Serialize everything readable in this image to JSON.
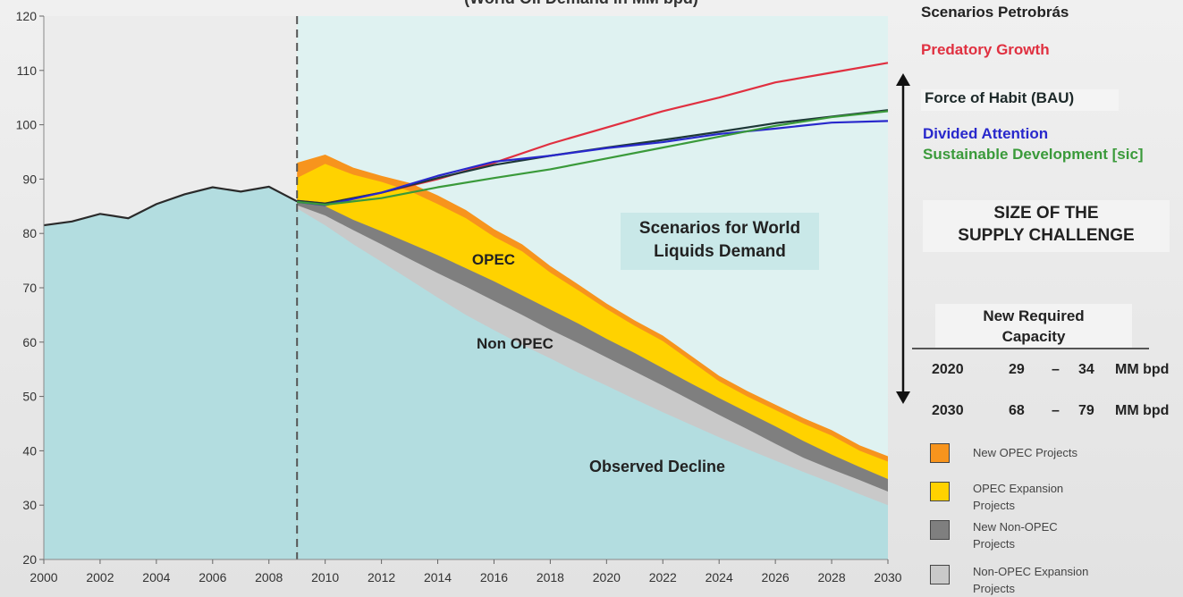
{
  "chart_data": {
    "type": "area",
    "subtitle": "(World Oil Demand in MM bpd)",
    "x": [
      2000,
      2001,
      2002,
      2003,
      2004,
      2005,
      2006,
      2007,
      2008,
      2009,
      2010,
      2011,
      2012,
      2013,
      2014,
      2015,
      2016,
      2017,
      2018,
      2019,
      2020,
      2021,
      2022,
      2023,
      2024,
      2025,
      2026,
      2027,
      2028,
      2029,
      2030
    ],
    "xticks": [
      2000,
      2002,
      2004,
      2006,
      2008,
      2010,
      2012,
      2014,
      2016,
      2018,
      2020,
      2022,
      2024,
      2026,
      2028,
      2030
    ],
    "yticks": [
      20,
      30,
      40,
      50,
      60,
      70,
      80,
      90,
      100,
      110,
      120
    ],
    "ylim": [
      20,
      120
    ],
    "xlim": [
      2000,
      2030
    ],
    "history": {
      "x": [
        2000,
        2001,
        2002,
        2003,
        2004,
        2005,
        2006,
        2007,
        2008,
        2009
      ],
      "values": [
        81.5,
        82.2,
        83.6,
        82.8,
        85.4,
        87.2,
        88.5,
        87.7,
        88.6,
        85.9
      ]
    },
    "stacked_areas": {
      "x": [
        2009,
        2010,
        2011,
        2012,
        2013,
        2014,
        2015,
        2016,
        2017,
        2018,
        2019,
        2020,
        2021,
        2022,
        2023,
        2024,
        2025,
        2026,
        2027,
        2028,
        2029,
        2030
      ],
      "observed_decline": [
        84.6,
        81.5,
        78,
        74.8,
        71.5,
        68.2,
        65,
        62.2,
        59.5,
        57,
        54.4,
        52,
        49.5,
        47.1,
        44.8,
        42.5,
        40.3,
        38.2,
        36.1,
        34.1,
        32,
        30
      ],
      "non_opec_expansion": [
        85.2,
        83.3,
        80.6,
        78,
        75.3,
        72.7,
        70.2,
        67.6,
        65,
        62.3,
        59.8,
        57.2,
        54.6,
        52,
        49.3,
        46.6,
        44,
        41.3,
        38.7,
        36.6,
        34.6,
        32.5
      ],
      "new_non_opec": [
        86,
        85,
        82.5,
        80.4,
        78.2,
        76,
        73.6,
        71.2,
        68.6,
        66,
        63.4,
        60.6,
        58,
        55.2,
        52.4,
        49.7,
        47.1,
        44.5,
        41.8,
        39.3,
        37,
        34.8
      ],
      "opec_expansion": [
        90.2,
        92.8,
        90.8,
        89.5,
        87.8,
        85.4,
        82.8,
        79.4,
        76.7,
        72.8,
        69.5,
        66.1,
        63,
        60.2,
        56.5,
        52.8,
        50,
        47.5,
        45,
        42.8,
        40,
        38
      ],
      "new_opec": [
        93,
        94.5,
        92.1,
        90.6,
        89.3,
        87,
        84.3,
        80.8,
        78,
        74,
        70.6,
        67.1,
        64,
        61.2,
        57.5,
        53.8,
        51,
        48.5,
        46,
        43.8,
        41,
        39
      ]
    },
    "series": [
      {
        "name": "Predatory Growth",
        "color": "#e03040",
        "x": [
          2009,
          2010,
          2012,
          2014,
          2016,
          2018,
          2020,
          2022,
          2024,
          2026,
          2028,
          2030
        ],
        "values": [
          86,
          85.5,
          87.5,
          90,
          93,
          96.5,
          99.5,
          102.5,
          105,
          107.8,
          109.6,
          111.4
        ]
      },
      {
        "name": "Force of Habit (BAU)",
        "color": "#1e3838",
        "x": [
          2009,
          2010,
          2012,
          2014,
          2016,
          2018,
          2020,
          2022,
          2024,
          2026,
          2028,
          2030
        ],
        "values": [
          86,
          85.5,
          87.5,
          90.2,
          92.6,
          94.3,
          95.8,
          97.2,
          98.7,
          100.3,
          101.5,
          102.7
        ]
      },
      {
        "name": "Divided Attention",
        "color": "#2828cc",
        "x": [
          2009,
          2010,
          2012,
          2014,
          2016,
          2018,
          2020,
          2022,
          2024,
          2026,
          2028,
          2030
        ],
        "values": [
          85.8,
          85.2,
          87.5,
          90.6,
          93.2,
          94.3,
          95.7,
          96.8,
          98.3,
          99.3,
          100.4,
          100.7
        ]
      },
      {
        "name": "Sustainable Development [sic]",
        "color": "#3a9a3a",
        "x": [
          2009,
          2010,
          2012,
          2014,
          2016,
          2018,
          2020,
          2022,
          2024,
          2026,
          2028,
          2030
        ],
        "values": [
          85.8,
          85.3,
          86.5,
          88.5,
          90.2,
          91.8,
          93.8,
          95.8,
          97.8,
          99.8,
          101.4,
          102.5
        ]
      }
    ],
    "forecast_start": 2009,
    "grid": false
  },
  "annotations": {
    "scenarios_box": [
      "Scenarios for World",
      "Liquids Demand"
    ],
    "opec": "OPEC",
    "non_opec": "Non OPEC",
    "observed_decline": "Observed Decline"
  },
  "legend": {
    "title": "Scenarios Petrobrás",
    "scenarios": [
      {
        "label": "Predatory Growth",
        "color": "#e03040"
      },
      {
        "label": "Force of Habit (BAU)",
        "color": "#1e2a2a"
      },
      {
        "label": "Divided Attention",
        "color": "#2828cc"
      },
      {
        "label": "Sustainable Development [sic]",
        "color": "#3a9a3a"
      }
    ],
    "supply_challenge": [
      "SIZE OF THE",
      "SUPPLY CHALLENGE"
    ],
    "new_required_capacity": [
      "New Required",
      "Capacity"
    ],
    "capacity_rows": [
      {
        "year": "2020",
        "low": "29",
        "dash": "–",
        "high": "34",
        "unit": "MM bpd"
      },
      {
        "year": "2030",
        "low": "68",
        "dash": "–",
        "high": "79",
        "unit": "MM bpd"
      }
    ],
    "keys": [
      {
        "label": "New OPEC Projects",
        "color": "#f7941d"
      },
      {
        "label": "OPEC Expansion Projects",
        "color": "#ffd200"
      },
      {
        "label": "New Non-OPEC Projects",
        "color": "#7f7f7f"
      },
      {
        "label": "Non-OPEC Expansion Projects",
        "color": "#c9c9c9"
      }
    ]
  },
  "colors": {
    "history_fill": "#b3dde0",
    "forecast_bg": "#dff2f1",
    "opec_new": "#f7941d",
    "opec_expansion": "#ffd200",
    "non_opec_new": "#7f7f7f",
    "non_opec_expansion": "#c9c9c9"
  }
}
